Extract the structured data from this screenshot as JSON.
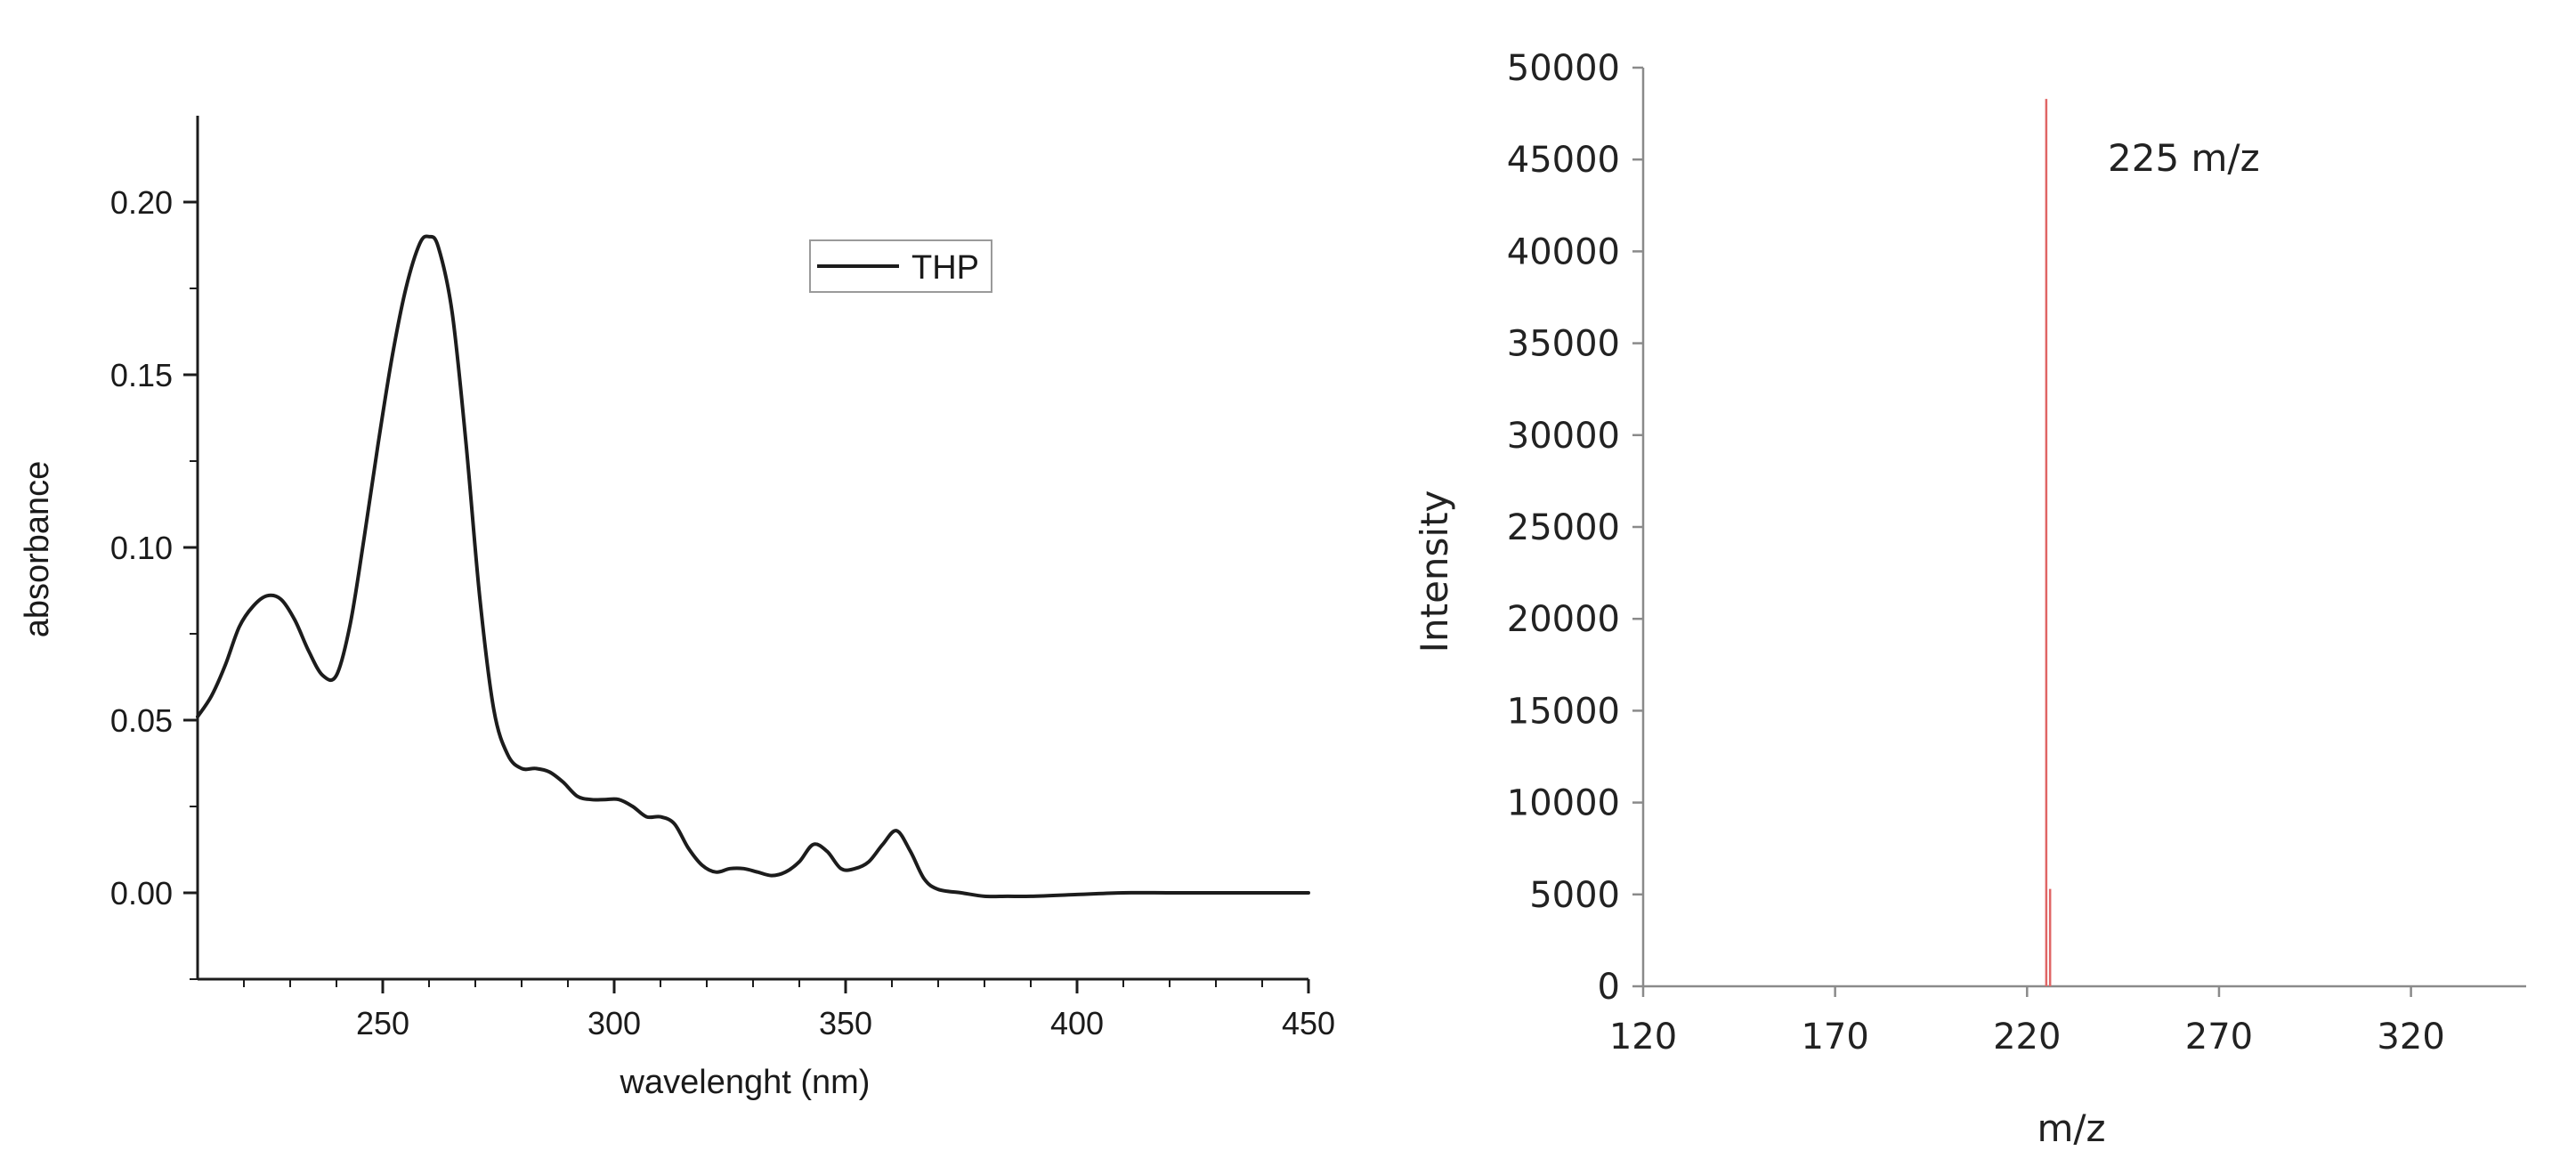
{
  "colors": {
    "uv_line": "#1c1c1c",
    "uv_axis": "#1c1c1c",
    "ms_peak": "#e06666",
    "ms_axis": "#8a8a8a"
  },
  "chart_data": [
    {
      "type": "line",
      "xlabel": "wavelenght (nm)",
      "ylabel": "absorbance",
      "xlim": [
        210,
        450
      ],
      "ylim": [
        -0.025,
        0.225
      ],
      "x_ticks": [
        250,
        300,
        350,
        400,
        450
      ],
      "x_tick_labels": [
        "250",
        "300",
        "350",
        "400",
        "450"
      ],
      "y_ticks": [
        0.0,
        0.05,
        0.1,
        0.15,
        0.2
      ],
      "y_tick_labels": [
        "0.00",
        "0.05",
        "0.10",
        "0.15",
        "0.20"
      ],
      "grid": false,
      "legend": {
        "position": "top-right",
        "entries": [
          "THP"
        ]
      },
      "series": [
        {
          "name": "THP",
          "x": [
            210,
            213,
            216,
            219,
            222,
            225,
            228,
            231,
            234,
            237,
            240,
            243,
            246,
            249,
            252,
            255,
            258,
            260,
            262,
            265,
            268,
            271,
            274,
            277,
            280,
            283,
            286,
            289,
            292,
            295,
            298,
            301,
            304,
            307,
            310,
            313,
            316,
            319,
            322,
            325,
            328,
            331,
            334,
            337,
            340,
            343,
            346,
            349,
            352,
            355,
            358,
            361,
            364,
            367,
            370,
            375,
            380,
            385,
            390,
            400,
            410,
            420,
            430,
            440,
            450
          ],
          "y": [
            0.051,
            0.057,
            0.066,
            0.077,
            0.083,
            0.086,
            0.085,
            0.079,
            0.07,
            0.063,
            0.063,
            0.078,
            0.103,
            0.13,
            0.155,
            0.175,
            0.188,
            0.19,
            0.187,
            0.168,
            0.13,
            0.085,
            0.053,
            0.04,
            0.036,
            0.036,
            0.035,
            0.032,
            0.028,
            0.027,
            0.027,
            0.027,
            0.025,
            0.022,
            0.022,
            0.02,
            0.013,
            0.008,
            0.006,
            0.007,
            0.007,
            0.006,
            0.005,
            0.006,
            0.009,
            0.014,
            0.012,
            0.007,
            0.007,
            0.009,
            0.014,
            0.018,
            0.012,
            0.004,
            0.001,
            0.0,
            -0.001,
            -0.001,
            -0.001,
            -0.0005,
            0.0,
            0.0,
            0.0,
            0.0,
            0.0
          ]
        }
      ]
    },
    {
      "type": "bar",
      "xlabel": "m/z",
      "ylabel": "Intensity",
      "xlim": [
        120,
        350
      ],
      "ylim": [
        0,
        50000
      ],
      "x_ticks": [
        120,
        170,
        220,
        270,
        320
      ],
      "x_tick_labels": [
        "120",
        "170",
        "220",
        "270",
        "320"
      ],
      "y_ticks": [
        0,
        5000,
        10000,
        15000,
        20000,
        25000,
        30000,
        35000,
        40000,
        45000,
        50000
      ],
      "y_tick_labels": [
        "0",
        "5000",
        "10000",
        "15000",
        "20000",
        "25000",
        "30000",
        "35000",
        "40000",
        "45000",
        "50000"
      ],
      "grid": false,
      "annotations": [
        "225 m/z"
      ],
      "series": [
        {
          "x": [
            225,
            226
          ],
          "values": [
            48300,
            5300
          ]
        }
      ]
    }
  ]
}
